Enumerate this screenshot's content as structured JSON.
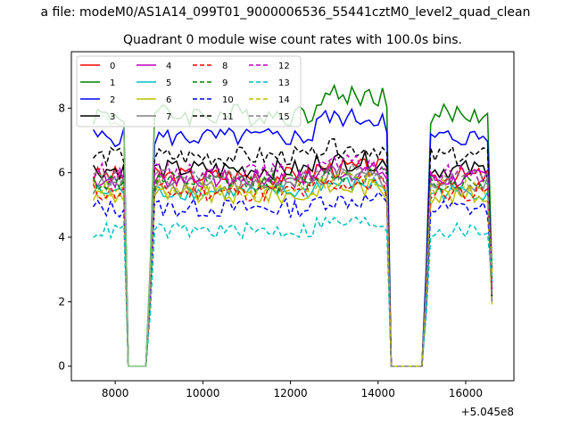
{
  "chart_data": {
    "type": "line",
    "suptitle": "a file: modeM0/AS1A14_099T01_9000006536_55441cztM0_level2_quad_clean",
    "title": "Quadrant 0 module wise count rates with 100.0s bins.",
    "xlabel": "",
    "ylabel": "",
    "x_offset_label": "+5.045e8",
    "xlim": [
      7000,
      17100
    ],
    "ylim": [
      -0.45,
      9.75
    ],
    "xticks": [
      8000,
      10000,
      12000,
      14000,
      16000
    ],
    "xtick_labels": [
      "8000",
      "10000",
      "12000",
      "14000",
      "16000"
    ],
    "yticks": [
      0,
      2,
      4,
      6,
      8
    ],
    "ytick_labels": [
      "0",
      "2",
      "4",
      "6",
      "8"
    ],
    "grid": false,
    "legend": {
      "placement": "top-left",
      "columns": 4
    },
    "series": [
      {
        "name": "0",
        "color": "#ff0000",
        "dash": "solid",
        "level": 5.9,
        "noise": 0.3
      },
      {
        "name": "1",
        "color": "#008000",
        "dash": "solid",
        "level": 7.8,
        "noise": 0.35
      },
      {
        "name": "2",
        "color": "#0000ff",
        "dash": "solid",
        "level": 7.1,
        "noise": 0.3
      },
      {
        "name": "3",
        "color": "#000000",
        "dash": "solid",
        "level": 6.1,
        "noise": 0.3
      },
      {
        "name": "4",
        "color": "#bf00bf",
        "dash": "solid",
        "level": 5.8,
        "noise": 0.3
      },
      {
        "name": "5",
        "color": "#00bfbf",
        "dash": "solid",
        "level": 5.4,
        "noise": 0.25
      },
      {
        "name": "6",
        "color": "#bfbf00",
        "dash": "solid",
        "level": 5.3,
        "noise": 0.3
      },
      {
        "name": "7",
        "color": "#808080",
        "dash": "solid",
        "level": 5.6,
        "noise": 0.3
      },
      {
        "name": "8",
        "color": "#ff0000",
        "dash": "dashed",
        "level": 5.4,
        "noise": 0.3
      },
      {
        "name": "9",
        "color": "#008000",
        "dash": "dashed",
        "level": 5.7,
        "noise": 0.3
      },
      {
        "name": "10",
        "color": "#0000ff",
        "dash": "dashed",
        "level": 4.9,
        "noise": 0.3
      },
      {
        "name": "11",
        "color": "#000000",
        "dash": "dashed",
        "level": 6.5,
        "noise": 0.3
      },
      {
        "name": "12",
        "color": "#bf00bf",
        "dash": "dashed",
        "level": 6.0,
        "noise": 0.3
      },
      {
        "name": "13",
        "color": "#00bfbf",
        "dash": "dashed",
        "level": 4.2,
        "noise": 0.25
      },
      {
        "name": "14",
        "color": "#bfbf00",
        "dash": "dashed",
        "level": 5.5,
        "noise": 0.3
      },
      {
        "name": "15",
        "color": "#808080",
        "dash": "dashed",
        "level": 5.8,
        "noise": 0.3
      },
      {
        "name": "",
        "color": "#7fbf7f",
        "dash": "solid",
        "level": 7.6,
        "noise": 0.25,
        "segment": [
          7500,
          8900
        ]
      }
    ],
    "gaps": [
      {
        "drop_start": 8200,
        "zero_from": 8300,
        "zero_to": 8700,
        "rise_end": 8900
      },
      {
        "drop_start": 14200,
        "zero_from": 14300,
        "zero_to": 15000,
        "rise_end": 15200
      }
    ],
    "x_start": 7500,
    "x_end": 16600,
    "bin": 100,
    "end_drop_value": 2.5
  }
}
